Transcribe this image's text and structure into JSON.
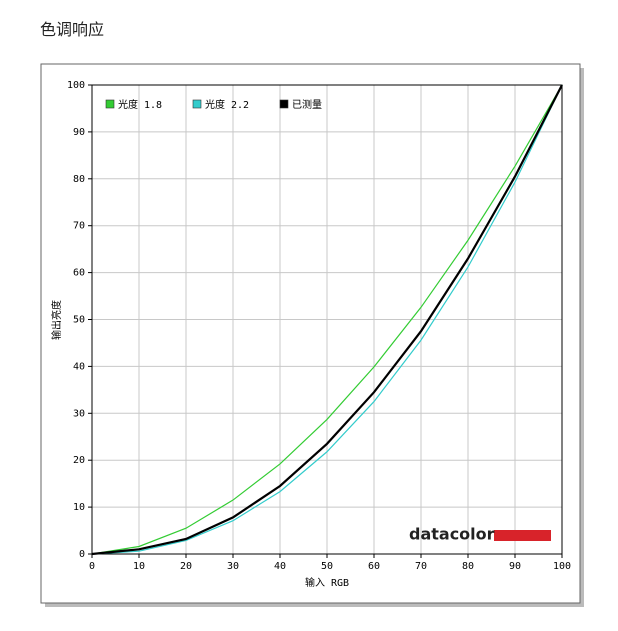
{
  "chart_data": {
    "type": "line",
    "title": "色调响应",
    "x_label": "输入 RGB",
    "y_label": "输出亮度",
    "logo": "datacolor",
    "x": [
      0,
      10,
      20,
      30,
      40,
      50,
      60,
      70,
      80,
      90,
      100
    ],
    "series": [
      {
        "name": "光度 1.8",
        "color": "#33cc33",
        "values": [
          0,
          1.6,
          5.5,
          11.5,
          19.2,
          28.7,
          39.9,
          52.6,
          66.9,
          82.7,
          100
        ]
      },
      {
        "name": "光度 2.2",
        "color": "#33cccc",
        "values": [
          0,
          0.6,
          2.9,
          7.1,
          13.3,
          21.8,
          32.5,
          45.6,
          61.2,
          79.3,
          100
        ]
      },
      {
        "name": "已测量",
        "color": "#000000",
        "values": [
          0,
          1.0,
          3.2,
          7.8,
          14.5,
          23.5,
          34.5,
          47.5,
          63,
          80.5,
          100
        ]
      }
    ],
    "xlim": [
      0,
      100
    ],
    "ylim": [
      0,
      100
    ],
    "xticks": [
      0,
      10,
      20,
      30,
      40,
      50,
      60,
      70,
      80,
      90,
      100
    ],
    "yticks": [
      0,
      10,
      20,
      30,
      40,
      50,
      60,
      70,
      80,
      90,
      100
    ],
    "grid": true,
    "legend": "top-left"
  }
}
